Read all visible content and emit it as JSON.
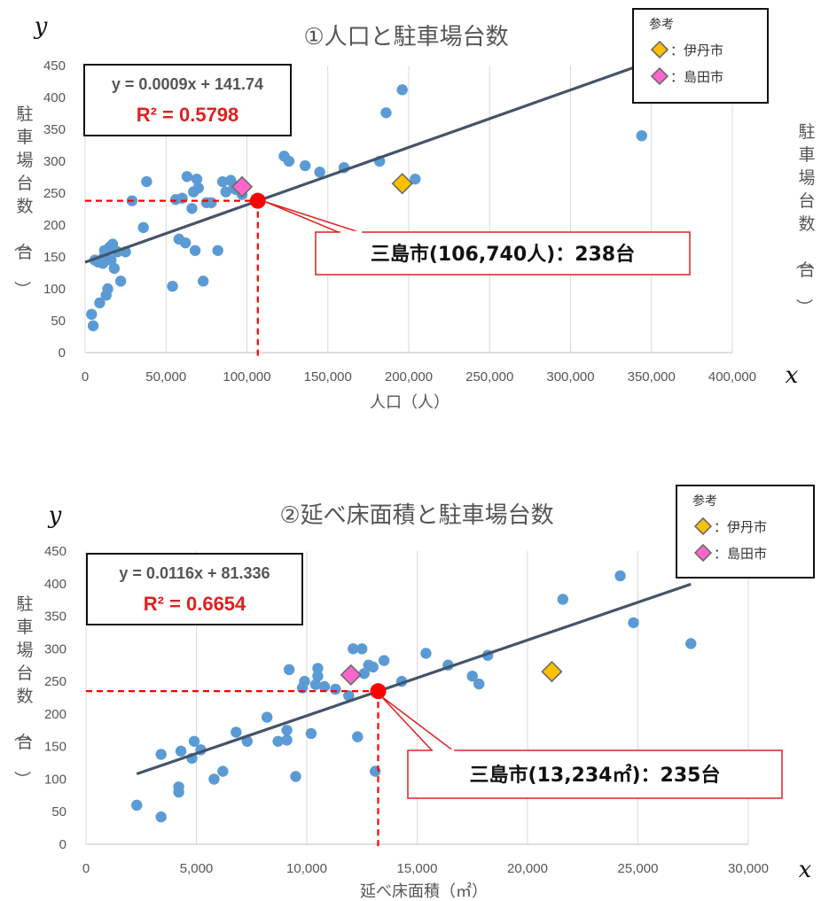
{
  "chart_data": [
    {
      "type": "scatter",
      "title": "①人口と駐車場台数",
      "xlabel": "人口（人）",
      "ylabel": "駐車場台数（台）",
      "ylabel_right": "駐車場台数（台）",
      "x_var": "x",
      "y_var": "y",
      "xlim": [
        0,
        400000
      ],
      "ylim": [
        0,
        450
      ],
      "x_ticks": [
        "0",
        "50,000",
        "100,000",
        "150,000",
        "200,000",
        "250,000",
        "300,000",
        "350,000",
        "400,000"
      ],
      "y_ticks": [
        "0",
        "50",
        "100",
        "150",
        "200",
        "250",
        "300",
        "350",
        "400",
        "450"
      ],
      "grid": "vertical",
      "point_color": "#5b9bd5",
      "points": [
        [
          4000,
          60
        ],
        [
          5000,
          42
        ],
        [
          6000,
          145
        ],
        [
          8000,
          142
        ],
        [
          9000,
          78
        ],
        [
          11000,
          140
        ],
        [
          11500,
          150
        ],
        [
          12000,
          160
        ],
        [
          13000,
          90
        ],
        [
          14000,
          100
        ],
        [
          15000,
          165
        ],
        [
          16000,
          145
        ],
        [
          17000,
          170
        ],
        [
          18000,
          132
        ],
        [
          20000,
          158
        ],
        [
          22000,
          112
        ],
        [
          25000,
          158
        ],
        [
          29000,
          238
        ],
        [
          36000,
          196
        ],
        [
          38000,
          268
        ],
        [
          54000,
          104
        ],
        [
          56000,
          240
        ],
        [
          58000,
          178
        ],
        [
          60000,
          242
        ],
        [
          62000,
          172
        ],
        [
          63000,
          276
        ],
        [
          66000,
          226
        ],
        [
          67000,
          252
        ],
        [
          68000,
          160
        ],
        [
          69000,
          272
        ],
        [
          70000,
          258
        ],
        [
          73000,
          112
        ],
        [
          75000,
          235
        ],
        [
          78000,
          235
        ],
        [
          82000,
          160
        ],
        [
          85000,
          268
        ],
        [
          87000,
          252
        ],
        [
          90000,
          270
        ],
        [
          92000,
          262
        ],
        [
          93000,
          256
        ],
        [
          97000,
          248
        ],
        [
          123000,
          308
        ],
        [
          126000,
          300
        ],
        [
          136000,
          293
        ],
        [
          145000,
          283
        ],
        [
          160000,
          290
        ],
        [
          182000,
          300
        ],
        [
          186000,
          376
        ],
        [
          196000,
          412
        ],
        [
          204000,
          272
        ],
        [
          344000,
          340
        ]
      ],
      "highlight": {
        "label": "三島市(106,740人)：238台",
        "x": 106740,
        "y": 238,
        "color": "#ff0000"
      },
      "reference_points": [
        {
          "name": "伊丹市",
          "x": 196000,
          "y": 265,
          "color": "#ffc000"
        },
        {
          "name": "島田市",
          "x": 97000,
          "y": 260,
          "color": "#ff66cc"
        }
      ],
      "trendline": {
        "equation": "y = 0.0009x + 141.74",
        "r2": "R² = 0.5798",
        "slope": 0.0009,
        "intercept": 141.74,
        "x_range": [
          0,
          345000
        ],
        "color": "#44546a"
      },
      "legend": {
        "title": "参考",
        "position": "top-right",
        "items": [
          "：伊丹市",
          "：島田市"
        ]
      }
    },
    {
      "type": "scatter",
      "title": "②延べ床面積と駐車場台数",
      "xlabel": "延べ床面積（㎡）",
      "ylabel": "駐車場台数（台）",
      "x_var": "x",
      "y_var": "y",
      "xlim": [
        0,
        30000
      ],
      "ylim": [
        0,
        450
      ],
      "x_ticks": [
        "0",
        "5,000",
        "10,000",
        "15,000",
        "20,000",
        "25,000",
        "30,000"
      ],
      "y_ticks": [
        "0",
        "50",
        "100",
        "150",
        "200",
        "250",
        "300",
        "350",
        "400",
        "450"
      ],
      "grid": "vertical",
      "point_color": "#5b9bd5",
      "points": [
        [
          2300,
          60
        ],
        [
          3400,
          42
        ],
        [
          3400,
          138
        ],
        [
          4200,
          80
        ],
        [
          4200,
          88
        ],
        [
          4300,
          143
        ],
        [
          4800,
          132
        ],
        [
          4900,
          158
        ],
        [
          5200,
          145
        ],
        [
          5800,
          100
        ],
        [
          6200,
          112
        ],
        [
          6800,
          172
        ],
        [
          7300,
          158
        ],
        [
          8200,
          195
        ],
        [
          8700,
          158
        ],
        [
          9100,
          175
        ],
        [
          9100,
          160
        ],
        [
          9200,
          268
        ],
        [
          9500,
          104
        ],
        [
          9800,
          240
        ],
        [
          9900,
          250
        ],
        [
          10200,
          170
        ],
        [
          10400,
          245
        ],
        [
          10500,
          258
        ],
        [
          10500,
          270
        ],
        [
          10800,
          242
        ],
        [
          11300,
          238
        ],
        [
          11900,
          228
        ],
        [
          12100,
          300
        ],
        [
          12300,
          165
        ],
        [
          12500,
          300
        ],
        [
          12600,
          262
        ],
        [
          12800,
          275
        ],
        [
          13000,
          272
        ],
        [
          13100,
          112
        ],
        [
          13500,
          282
        ],
        [
          14300,
          250
        ],
        [
          15400,
          293
        ],
        [
          16400,
          275
        ],
        [
          17500,
          258
        ],
        [
          17800,
          246
        ],
        [
          18200,
          290
        ],
        [
          21600,
          376
        ],
        [
          24200,
          412
        ],
        [
          24800,
          340
        ],
        [
          27400,
          308
        ]
      ],
      "highlight": {
        "label": "三島市(13,234㎡)：235台",
        "x": 13234,
        "y": 235,
        "color": "#ff0000"
      },
      "reference_points": [
        {
          "name": "伊丹市",
          "x": 21100,
          "y": 265,
          "color": "#ffc000"
        },
        {
          "name": "島田市",
          "x": 12000,
          "y": 260,
          "color": "#ff66cc"
        }
      ],
      "trendline": {
        "equation": "y = 0.0116x + 81.336",
        "r2": "R² = 0.6654",
        "slope": 0.0116,
        "intercept": 81.336,
        "x_range": [
          2300,
          27400
        ],
        "color": "#44546a"
      },
      "legend": {
        "title": "参考",
        "position": "top-right",
        "items": [
          "：伊丹市",
          "：島田市"
        ]
      }
    }
  ]
}
